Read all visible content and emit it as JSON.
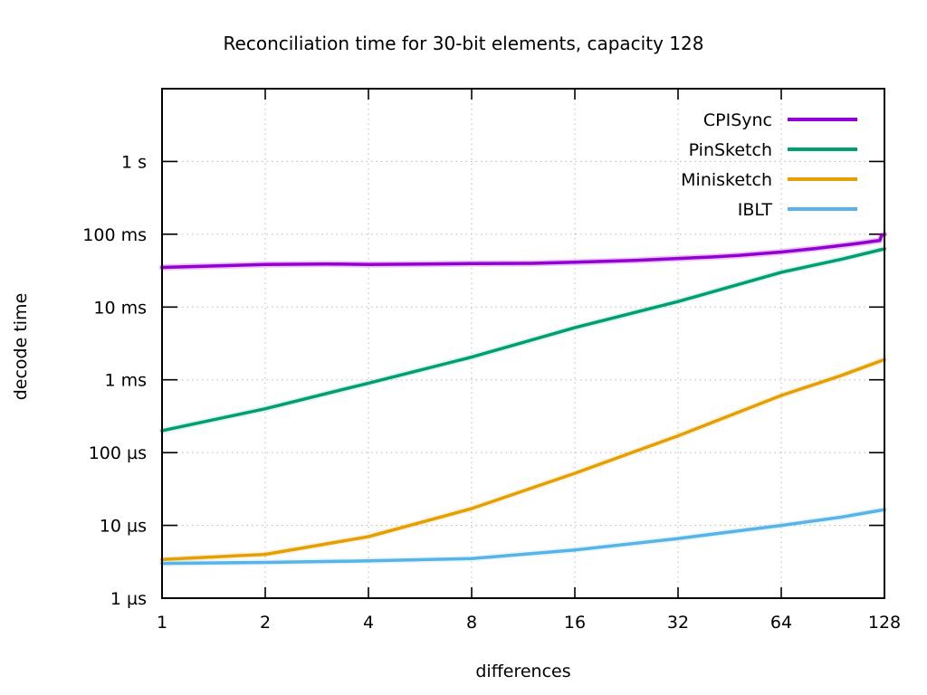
{
  "title": "Reconciliation time for 30-bit elements, capacity 128",
  "chart_data": {
    "type": "line",
    "title": "Reconciliation time for 30-bit elements, capacity 128",
    "xlabel": "differences",
    "ylabel": "decode time",
    "x_scale": "log2",
    "y_scale": "log10",
    "xlim": [
      1,
      128
    ],
    "ylim": [
      1e-06,
      10
    ],
    "grid": "dotted",
    "grid_color": "#b8b8b8",
    "border_color": "#000000",
    "legend_position": "top-right-inside",
    "x_ticks": [
      {
        "value": 1,
        "label": "1"
      },
      {
        "value": 2,
        "label": "2"
      },
      {
        "value": 4,
        "label": "4"
      },
      {
        "value": 8,
        "label": "8"
      },
      {
        "value": 16,
        "label": "16"
      },
      {
        "value": 32,
        "label": "32"
      },
      {
        "value": 64,
        "label": "64"
      },
      {
        "value": 128,
        "label": "128"
      }
    ],
    "y_ticks": [
      {
        "value": 1e-06,
        "label": "1 µs"
      },
      {
        "value": 1e-05,
        "label": "10 µs"
      },
      {
        "value": 0.0001,
        "label": "100 µs"
      },
      {
        "value": 0.001,
        "label": "1 ms"
      },
      {
        "value": 0.01,
        "label": "10 ms"
      },
      {
        "value": 0.1,
        "label": "100 ms"
      },
      {
        "value": 1,
        "label": "1 s"
      }
    ],
    "series": [
      {
        "name": "CPISync",
        "color": "#9400d3",
        "x": [
          1,
          1.5,
          2,
          3,
          4,
          6,
          8,
          12,
          16,
          24,
          32,
          40,
          48,
          64,
          80,
          91,
          104,
          112,
          120,
          124,
          125.5,
          128
        ],
        "y": [
          0.035,
          0.037,
          0.0385,
          0.039,
          0.0385,
          0.039,
          0.0395,
          0.0398,
          0.0412,
          0.0438,
          0.0465,
          0.0487,
          0.0512,
          0.057,
          0.0635,
          0.068,
          0.0735,
          0.077,
          0.0805,
          0.082,
          0.096,
          0.1
        ]
      },
      {
        "name": "PinSketch",
        "color": "#009e73",
        "x": [
          1,
          2,
          4,
          8,
          16,
          32,
          64,
          96,
          128
        ],
        "y": [
          0.0002,
          0.0004,
          0.0009,
          0.00205,
          0.0052,
          0.0119,
          0.03,
          0.0455,
          0.063
        ]
      },
      {
        "name": "Minisketch",
        "color": "#e69f00",
        "x": [
          1,
          2,
          4,
          8,
          16,
          32,
          64,
          96,
          128
        ],
        "y": [
          3.4e-06,
          4e-06,
          7e-06,
          1.7e-05,
          5.2e-05,
          0.00017,
          0.00061,
          0.00115,
          0.0019
        ]
      },
      {
        "name": "IBLT",
        "color": "#56b4e9",
        "x": [
          1,
          2,
          4,
          8,
          16,
          32,
          64,
          96,
          128
        ],
        "y": [
          3e-06,
          3.1e-06,
          3.25e-06,
          3.5e-06,
          4.6e-06,
          6.6e-06,
          1e-05,
          1.3e-05,
          1.65e-05
        ]
      }
    ]
  }
}
